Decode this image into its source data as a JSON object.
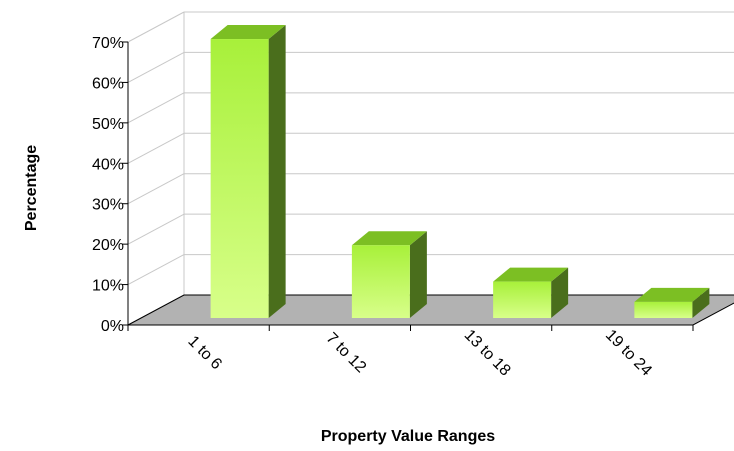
{
  "chart_data": {
    "type": "bar",
    "title": "",
    "xlabel": "Property Value Ranges",
    "ylabel": "Percentage",
    "categories": [
      "1 to 6",
      "7 to 12",
      "13 to 18",
      "19 to 24"
    ],
    "values": [
      69,
      18,
      9,
      4
    ],
    "ylim": [
      0,
      70
    ],
    "yticks": [
      "0%",
      "10%",
      "20%",
      "30%",
      "40%",
      "50%",
      "60%",
      "70%"
    ],
    "grid": true,
    "legend": "none",
    "style": "3d-column",
    "colors": {
      "bar_front_light": "#d8ff8a",
      "bar_front_dark": "#a8f03a",
      "bar_top": "#7cbf23",
      "bar_side": "#4a6e1c",
      "floor": "#b2b2b2",
      "gridline": "#c8c8c8"
    }
  }
}
